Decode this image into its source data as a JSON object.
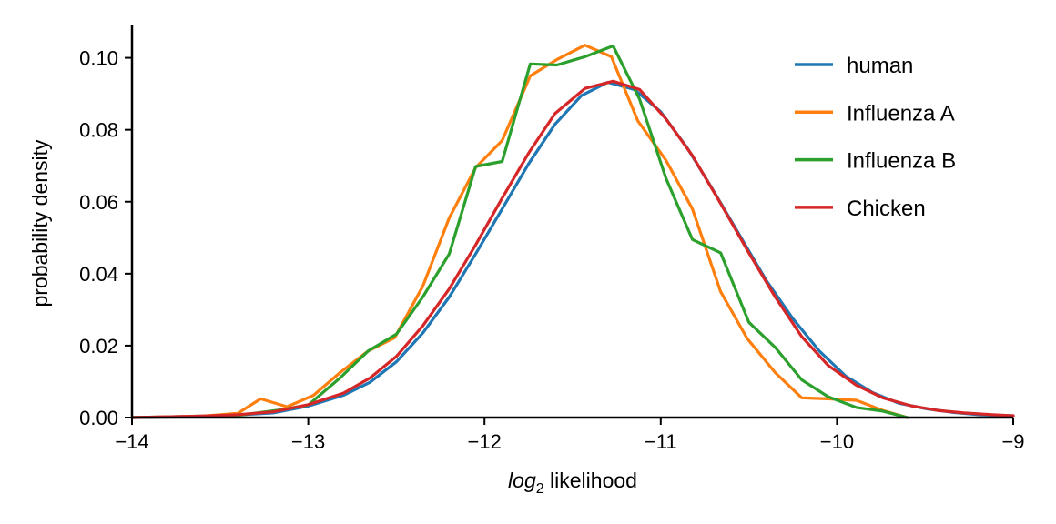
{
  "chart_data": {
    "type": "line",
    "xlabel_italic": "log",
    "xlabel_sub": "2",
    "xlabel_rest": " likelihood",
    "ylabel": "probability density",
    "xlim": [
      -14,
      -9
    ],
    "ylim": [
      0,
      0.109
    ],
    "xticks": [
      {
        "value": -14,
        "label": "−14"
      },
      {
        "value": -13,
        "label": "−13"
      },
      {
        "value": -12,
        "label": "−12"
      },
      {
        "value": -11,
        "label": "−11"
      },
      {
        "value": -10,
        "label": "−10"
      },
      {
        "value": -9,
        "label": "−9"
      }
    ],
    "yticks": [
      {
        "value": 0.0,
        "label": "0.00"
      },
      {
        "value": 0.02,
        "label": "0.02"
      },
      {
        "value": 0.04,
        "label": "0.04"
      },
      {
        "value": 0.06,
        "label": "0.06"
      },
      {
        "value": 0.08,
        "label": "0.08"
      },
      {
        "value": 0.1,
        "label": "0.10"
      }
    ],
    "grid": false,
    "legend": "top-right",
    "series": [
      {
        "name": "human",
        "color": "#1f77b4",
        "x": [
          -14.0,
          -13.8,
          -13.6,
          -13.4,
          -13.2,
          -13.0,
          -12.8,
          -12.65,
          -12.5,
          -12.35,
          -12.2,
          -12.05,
          -11.9,
          -11.75,
          -11.6,
          -11.45,
          -11.3,
          -11.15,
          -11.0,
          -10.85,
          -10.7,
          -10.55,
          -10.4,
          -10.25,
          -10.1,
          -9.95,
          -9.8,
          -9.65,
          -9.5,
          -9.35,
          -9.2,
          -9.05,
          -9.0
        ],
        "y": [
          0.0,
          0.0002,
          0.0004,
          0.0007,
          0.0013,
          0.0032,
          0.0062,
          0.0098,
          0.0155,
          0.0235,
          0.0335,
          0.0455,
          0.058,
          0.0705,
          0.0815,
          0.0895,
          0.0932,
          0.0912,
          0.085,
          0.075,
          0.063,
          0.0505,
          0.038,
          0.0275,
          0.0185,
          0.0115,
          0.007,
          0.004,
          0.0025,
          0.0015,
          0.0008,
          0.0005,
          0.0005
        ]
      },
      {
        "name": "Influenza A",
        "color": "#ff7f0e",
        "x": [
          -14.0,
          -13.6,
          -13.4,
          -13.27,
          -13.12,
          -12.97,
          -12.82,
          -12.66,
          -12.51,
          -12.35,
          -12.2,
          -12.05,
          -11.9,
          -11.74,
          -11.59,
          -11.43,
          -11.28,
          -11.13,
          -10.97,
          -10.82,
          -10.66,
          -10.51,
          -10.35,
          -10.2,
          -10.05,
          -9.89,
          -9.74,
          -9.6
        ],
        "y": [
          0.0,
          0.0004,
          0.0012,
          0.0052,
          0.003,
          0.0062,
          0.0125,
          0.0185,
          0.0222,
          0.0365,
          0.0555,
          0.0695,
          0.077,
          0.095,
          0.0995,
          0.1035,
          0.1003,
          0.0825,
          0.0715,
          0.058,
          0.035,
          0.022,
          0.0125,
          0.0055,
          0.0052,
          0.0048,
          0.002,
          0.0
        ]
      },
      {
        "name": "Influenza B",
        "color": "#2ca02c",
        "x": [
          -14.0,
          -13.6,
          -13.4,
          -13.15,
          -13.0,
          -12.82,
          -12.66,
          -12.5,
          -12.35,
          -12.2,
          -12.05,
          -11.9,
          -11.74,
          -11.59,
          -11.43,
          -11.27,
          -11.12,
          -10.97,
          -10.82,
          -10.66,
          -10.5,
          -10.35,
          -10.2,
          -10.05,
          -9.89,
          -9.74,
          -9.6
        ],
        "y": [
          0.0,
          0.0002,
          0.0006,
          0.0022,
          0.0035,
          0.011,
          0.0185,
          0.0232,
          0.0335,
          0.0455,
          0.0698,
          0.0712,
          0.0983,
          0.098,
          0.1003,
          0.1033,
          0.0885,
          0.0665,
          0.0495,
          0.0458,
          0.0265,
          0.0195,
          0.0105,
          0.0058,
          0.0028,
          0.0018,
          0.0
        ]
      },
      {
        "name": "Chicken",
        "color": "#d62728",
        "x": [
          -14.0,
          -13.8,
          -13.6,
          -13.4,
          -13.2,
          -13.0,
          -12.8,
          -12.65,
          -12.5,
          -12.35,
          -12.2,
          -12.05,
          -11.9,
          -11.75,
          -11.6,
          -11.43,
          -11.27,
          -11.12,
          -10.97,
          -10.82,
          -10.66,
          -10.5,
          -10.35,
          -10.2,
          -10.05,
          -9.89,
          -9.74,
          -9.58,
          -9.43,
          -9.28,
          -9.12,
          -9.0
        ],
        "y": [
          0.0,
          0.0002,
          0.0004,
          0.0008,
          0.0016,
          0.0036,
          0.0068,
          0.011,
          0.017,
          0.0255,
          0.0358,
          0.048,
          0.061,
          0.0735,
          0.0845,
          0.0915,
          0.0935,
          0.0912,
          0.083,
          0.0728,
          0.0595,
          0.0458,
          0.0335,
          0.0225,
          0.0145,
          0.009,
          0.0055,
          0.0033,
          0.002,
          0.0013,
          0.0008,
          0.0005
        ]
      }
    ]
  }
}
